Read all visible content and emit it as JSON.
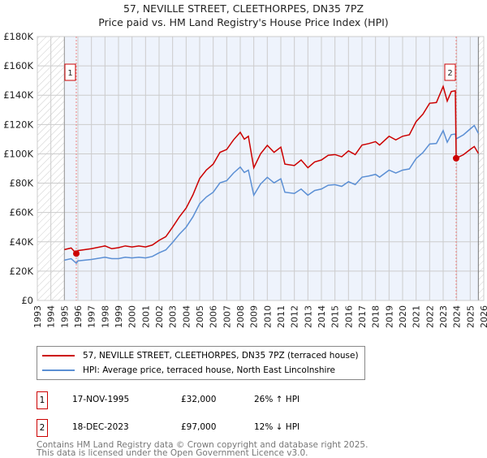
{
  "chart_data": {
    "type": "line",
    "title": "57, NEVILLE STREET, CLEETHORPES, DN35 7PZ",
    "subtitle": "Price paid vs. HM Land Registry's House Price Index (HPI)",
    "xlim": [
      1993,
      2026
    ],
    "ylim": [
      0,
      180000
    ],
    "ytick_labels": [
      "£0",
      "£20K",
      "£40K",
      "£60K",
      "£80K",
      "£100K",
      "£120K",
      "£140K",
      "£160K",
      "£180K"
    ],
    "yticks": [
      0,
      20000,
      40000,
      60000,
      80000,
      100000,
      120000,
      140000,
      160000,
      180000
    ],
    "xticks": [
      1993,
      1994,
      1995,
      1996,
      1997,
      1998,
      1999,
      2000,
      2001,
      2002,
      2003,
      2004,
      2005,
      2006,
      2007,
      2008,
      2009,
      2010,
      2011,
      2012,
      2013,
      2014,
      2015,
      2016,
      2017,
      2018,
      2019,
      2020,
      2021,
      2022,
      2023,
      2024,
      2025,
      2026
    ],
    "grid": true,
    "x": [
      1995.0,
      1995.5,
      1995.88,
      1996.0,
      1997.0,
      1998.0,
      1998.5,
      1999.0,
      1999.5,
      2000.0,
      2000.5,
      2001.0,
      2001.5,
      2002.0,
      2002.5,
      2003.0,
      2003.5,
      2004.0,
      2004.5,
      2005.0,
      2005.5,
      2006.0,
      2006.5,
      2007.0,
      2007.5,
      2008.0,
      2008.3,
      2008.6,
      2009.0,
      2009.5,
      2010.0,
      2010.5,
      2011.0,
      2011.3,
      2012.0,
      2012.5,
      2013.0,
      2013.5,
      2014.0,
      2014.5,
      2015.0,
      2015.5,
      2016.0,
      2016.5,
      2017.0,
      2017.5,
      2018.0,
      2018.3,
      2019.0,
      2019.5,
      2020.0,
      2020.5,
      2021.0,
      2021.5,
      2022.0,
      2022.5,
      2023.0,
      2023.3,
      2023.6,
      2023.9,
      2023.96,
      2024.5,
      2025.0,
      2025.3,
      2025.6
    ],
    "series": [
      {
        "name": "57, NEVILLE STREET, CLEETHORPES, DN35 7PZ (terraced house)",
        "color": "#cc0000",
        "values": [
          34700,
          35800,
          32000,
          34000,
          35300,
          37200,
          35300,
          36000,
          37200,
          36500,
          37200,
          36500,
          37800,
          41000,
          43500,
          50000,
          57000,
          63000,
          72000,
          83200,
          89000,
          93000,
          101000,
          103000,
          109500,
          114700,
          110000,
          112000,
          90500,
          100000,
          105800,
          101000,
          104600,
          93000,
          92000,
          95800,
          90500,
          94500,
          95800,
          99000,
          99500,
          98000,
          102000,
          99500,
          106000,
          107000,
          108300,
          106000,
          112000,
          109500,
          112000,
          113000,
          122000,
          127000,
          134500,
          135000,
          146000,
          136000,
          142500,
          143000,
          97000,
          99400,
          103000,
          105000,
          100300
        ]
      },
      {
        "name": "HPI: Average price, terraced house, North East Lincolnshire",
        "color": "#5b8fd4",
        "values": [
          27500,
          28500,
          25400,
          27000,
          28000,
          29500,
          28500,
          28500,
          29500,
          29000,
          29500,
          29000,
          30000,
          32500,
          34500,
          39600,
          45200,
          50000,
          57000,
          66000,
          70600,
          73800,
          80200,
          81700,
          86900,
          91000,
          87300,
          88900,
          71800,
          79400,
          84000,
          80200,
          83000,
          73800,
          73000,
          76000,
          71800,
          75000,
          76000,
          78600,
          79000,
          77800,
          81000,
          79000,
          84100,
          84900,
          86000,
          84100,
          88900,
          86900,
          88900,
          89700,
          96800,
          100800,
          106700,
          107100,
          115900,
          107900,
          113100,
          113500,
          110200,
          113000,
          117000,
          119300,
          114000
        ]
      }
    ],
    "sales": [
      {
        "label": "1",
        "x": 1995.88,
        "y": 32000
      },
      {
        "label": "2",
        "x": 2023.96,
        "y": 97000
      }
    ],
    "legend_position": "bottom"
  },
  "legend": {
    "red": "57, NEVILLE STREET, CLEETHORPES, DN35 7PZ (terraced house)",
    "blue": "HPI: Average price, terraced house, North East Lincolnshire"
  },
  "transactions": [
    {
      "num": "1",
      "date": "17-NOV-1995",
      "price": "£32,000",
      "hpi": "26% ↑ HPI"
    },
    {
      "num": "2",
      "date": "18-DEC-2023",
      "price": "£97,000",
      "hpi": "12% ↓ HPI"
    }
  ],
  "footer": {
    "line1": "Contains HM Land Registry data © Crown copyright and database right 2025.",
    "line2": "This data is licensed under the Open Government Licence v3.0."
  }
}
